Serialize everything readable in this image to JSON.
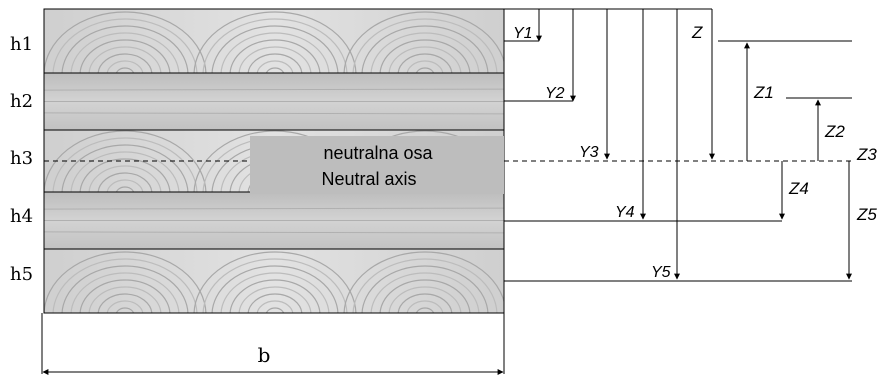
{
  "layers": [
    {
      "label": "h1",
      "texture": "rings"
    },
    {
      "label": "h2",
      "texture": "plain"
    },
    {
      "label": "h3",
      "texture": "rings"
    },
    {
      "label": "h4",
      "texture": "plain"
    },
    {
      "label": "h5",
      "texture": "rings"
    }
  ],
  "neutral_axis": {
    "label_line1": "neutralna osa",
    "label_line2": "Neutral axis"
  },
  "width_label": "b",
  "y_labels": {
    "y1": "Y1",
    "y2": "Y2",
    "y3": "Y3",
    "y4": "Y4",
    "y5": "Y5"
  },
  "z_labels": {
    "z": "Z",
    "z1": "Z1",
    "z2": "Z2",
    "z3": "Z3",
    "z4": "Z4",
    "z5": "Z5"
  },
  "colors": {
    "wood_light": "#d9d9d9",
    "wood_mid": "#c6c6c6",
    "wood_dark": "#9a9a9a",
    "label_box": "#bdbdbd",
    "line": "#000000"
  }
}
